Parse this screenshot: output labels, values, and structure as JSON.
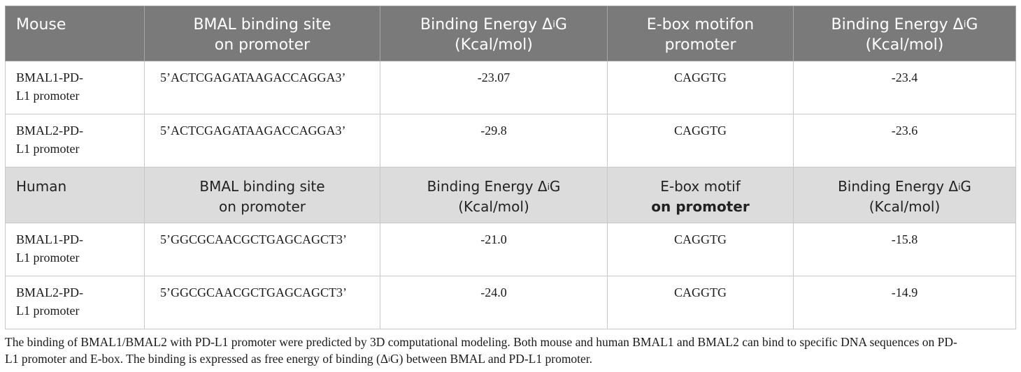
{
  "mouse_header": {
    "c1": "Mouse",
    "c2_l1": "BMAL binding site",
    "c2_l2": "on promoter",
    "c3_l1_pre": "Binding Energy Δ",
    "c3_sup": "i",
    "c3_l1_post": "G",
    "c3_l2": "(Kcal/mol)",
    "c4_l1": "E-box motifon",
    "c4_l2": "promoter",
    "c5_l1_pre": "Binding Energy Δ",
    "c5_sup": "i",
    "c5_l1_post": "G",
    "c5_l2": "(Kcal/mol)"
  },
  "mouse_rows": [
    {
      "name_l1": "BMAL1-PD-",
      "name_l2": "L1 promoter",
      "site": "5’ACTCGAGATAAGACCAGGA3’",
      "energy1": "-23.07",
      "ebox": "CAGGTG",
      "energy2": "-23.4"
    },
    {
      "name_l1": "BMAL2-PD-",
      "name_l2": "L1 promoter",
      "site": "5’ACTCGAGATAAGACCAGGA3’",
      "energy1": "-29.8",
      "ebox": "CAGGTG",
      "energy2": "-23.6"
    }
  ],
  "human_header": {
    "c1": "Human",
    "c2_l1": "BMAL binding site",
    "c2_l2": "on promoter",
    "c3_l1_pre": "Binding Energy Δ",
    "c3_sup": "i",
    "c3_l1_post": "G",
    "c3_l2": "(Kcal/mol)",
    "c4_l1": "E-box motif",
    "c4_l2": "on promoter",
    "c5_l1_pre": "Binding Energy Δ",
    "c5_sup": "i",
    "c5_l1_post": "G",
    "c5_l2": "(Kcal/mol)"
  },
  "human_rows": [
    {
      "name_l1": "BMAL1-PD-",
      "name_l2": "L1 promoter",
      "site": "5’GGCGCAACGCTGAGCAGCT3’",
      "energy1": "-21.0",
      "ebox": "CAGGTG",
      "energy2": "-15.8"
    },
    {
      "name_l1": "BMAL2-PD-",
      "name_l2": "L1 promoter",
      "site": "5’GGCGCAACGCTGAGCAGCT3’",
      "energy1": "-24.0",
      "ebox": "CAGGTG",
      "energy2": "-14.9"
    }
  ],
  "footnote": {
    "line1": "The binding of BMAL1/BMAL2 with PD-L1 promoter were predicted by 3D computational modeling. Both mouse and human BMAL1 and BMAL2 can bind to specific DNA sequences on PD-",
    "line2": "L1 promoter and E-box. The binding is expressed as free energy of binding (Δ",
    "sup": "i",
    "line2_post": "G) between BMAL and PD-L1 promoter."
  }
}
